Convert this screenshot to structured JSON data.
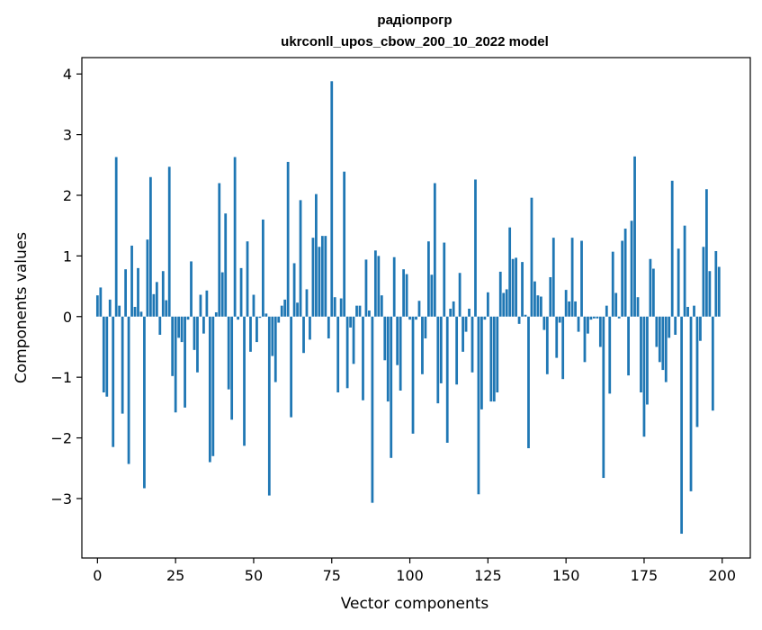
{
  "chart_data": {
    "type": "bar",
    "title_line1": "радіопрогр",
    "title_line2": "ukrconll_upos_cbow_200_10_2022 model",
    "xlabel": "Vector components",
    "ylabel": "Components values",
    "xlim": [
      -5,
      209
    ],
    "ylim": [
      -3.98,
      4.27
    ],
    "xticks": [
      0,
      25,
      50,
      75,
      100,
      125,
      150,
      175,
      200
    ],
    "yticks": [
      -3,
      -2,
      -1,
      0,
      1,
      2,
      3,
      4
    ],
    "ytick_labels": [
      "−3",
      "−2",
      "−1",
      "0",
      "1",
      "2",
      "3",
      "4"
    ],
    "bar_color": "#1f77b4",
    "values": [
      0.35,
      0.48,
      -1.25,
      -1.32,
      0.28,
      -2.15,
      2.63,
      0.18,
      -1.6,
      0.78,
      -2.43,
      1.17,
      0.16,
      0.8,
      0.08,
      -2.83,
      1.27,
      2.3,
      0.37,
      0.57,
      -0.3,
      0.75,
      0.27,
      2.47,
      -0.98,
      -1.58,
      -0.35,
      -0.42,
      -1.5,
      -0.05,
      0.91,
      -0.55,
      -0.92,
      0.36,
      -0.28,
      0.43,
      -2.4,
      -2.3,
      0.07,
      2.2,
      0.73,
      1.7,
      -1.2,
      -1.7,
      2.63,
      -0.05,
      0.8,
      -2.13,
      1.24,
      -0.58,
      0.36,
      -0.42,
      -0.02,
      1.6,
      0.05,
      -2.95,
      -0.65,
      -1.08,
      -0.1,
      0.18,
      0.28,
      2.55,
      -1.66,
      0.88,
      0.23,
      1.92,
      -0.6,
      0.45,
      -0.38,
      1.3,
      2.02,
      1.15,
      1.33,
      1.33,
      -0.36,
      3.88,
      0.32,
      -1.25,
      0.3,
      2.39,
      -1.18,
      -0.18,
      -0.78,
      0.18,
      0.18,
      -1.38,
      0.94,
      0.1,
      -3.07,
      1.09,
      1.0,
      0.35,
      -0.72,
      -1.4,
      -2.33,
      0.98,
      -0.8,
      -1.22,
      0.78,
      0.7,
      -0.05,
      -1.93,
      -0.05,
      0.26,
      -0.95,
      -0.36,
      1.24,
      0.69,
      2.2,
      -1.43,
      -1.1,
      1.22,
      -2.08,
      0.13,
      0.25,
      -1.12,
      0.72,
      -0.58,
      -0.25,
      0.13,
      -0.92,
      2.26,
      -2.93,
      -1.53,
      -0.05,
      0.4,
      -1.4,
      -1.4,
      -1.25,
      0.74,
      0.39,
      0.45,
      1.47,
      0.95,
      0.97,
      -0.12,
      0.9,
      0.03,
      -2.17,
      1.96,
      0.58,
      0.35,
      0.33,
      -0.22,
      -0.95,
      0.65,
      1.3,
      -0.68,
      -0.1,
      -1.03,
      0.44,
      0.25,
      1.3,
      0.25,
      -0.25,
      1.25,
      -0.75,
      -0.28,
      -0.05,
      -0.03,
      -0.03,
      -0.5,
      -2.66,
      0.18,
      -1.27,
      1.07,
      0.39,
      -0.03,
      1.25,
      1.45,
      -0.97,
      1.58,
      2.64,
      0.32,
      -1.25,
      -1.98,
      -1.45,
      0.95,
      0.79,
      -0.5,
      -0.75,
      -0.88,
      -1.08,
      -0.35,
      2.24,
      -0.3,
      1.12,
      -3.58,
      1.5,
      0.16,
      -2.88,
      0.18,
      -1.82,
      -0.4,
      1.15,
      2.1,
      0.75,
      -1.55,
      1.08,
      0.82
    ]
  }
}
